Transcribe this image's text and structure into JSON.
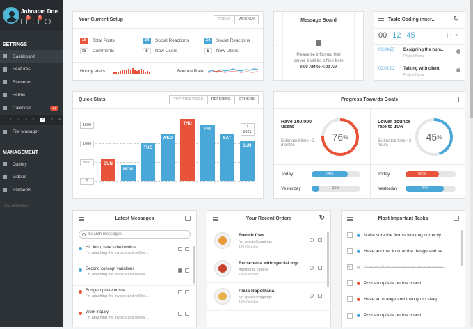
{
  "user": {
    "name": "Johnatan Doe",
    "badges": [
      "3",
      "5"
    ]
  },
  "sidebar": {
    "settings_title": "SETTINGS",
    "items": [
      {
        "label": "Dashboard"
      },
      {
        "label": "Features"
      },
      {
        "label": "Elements"
      },
      {
        "label": "Forms"
      },
      {
        "label": "Calendar",
        "badge": "22"
      }
    ],
    "calendar_days": [
      "7",
      "1",
      "2",
      "3",
      "1",
      "2",
      "3",
      "4"
    ],
    "file_manager": "File Manager",
    "management_title": "MANAGEMENT",
    "mgmt_items": [
      {
        "label": "Gallery"
      },
      {
        "label": "Videos"
      },
      {
        "label": "Elements"
      }
    ],
    "collapse": "COLLAPSE MENU"
  },
  "setup": {
    "title": "Your Current Setup",
    "tabs": [
      "TODAY",
      "WEEKLY"
    ],
    "stats": [
      {
        "num": "15",
        "label": "Total Posts",
        "color": "red"
      },
      {
        "num": "24",
        "label": "Social Reactions",
        "color": "blue"
      },
      {
        "num": "24",
        "label": "Social Reactions",
        "color": "blue"
      },
      {
        "num": "35",
        "label": "Comments",
        "color": "plain"
      },
      {
        "num": "5",
        "label": "New Users",
        "color": "plain"
      },
      {
        "num": "5",
        "label": "New Users",
        "color": "plain"
      }
    ],
    "hourly": "Hourly Visits",
    "bounce": "Bounce Rate"
  },
  "board": {
    "title": "Message Board",
    "text": "Please be informed that server 3 will be offline from",
    "time": "3:00 AM to 4:00 AM"
  },
  "task": {
    "title": "Task: Coding inner...",
    "clock": {
      "h": "00",
      "m": "12",
      "s": "45"
    },
    "entries": [
      {
        "time": "00:04:25",
        "title": "Designing the hom...",
        "sub": "Project Name"
      },
      {
        "time": "00:02:02",
        "title": "Talking with client",
        "sub": "Project Name"
      }
    ]
  },
  "quick": {
    "title": "Quick Stats",
    "tabs": [
      "TOP THIS WEEK",
      "REFERING",
      "OTHERS"
    ],
    "tooltip": {
      "label": "1021"
    }
  },
  "chart_data": {
    "type": "bar",
    "categories": [
      "SUN",
      "MON",
      "TUE",
      "WED",
      "THU",
      "FRI",
      "SAT",
      "SUN"
    ],
    "values": [
      580,
      420,
      990,
      1250,
      1640,
      1500,
      1250,
      1050
    ],
    "colors": [
      "#e8533a",
      "#4aa8d8",
      "#4aa8d8",
      "#4aa8d8",
      "#e8533a",
      "#4aa8d8",
      "#4aa8d8",
      "#4aa8d8"
    ],
    "yticks": [
      "1500",
      "1000",
      "500",
      "0"
    ],
    "ylim": [
      0,
      1700
    ]
  },
  "goals": {
    "title": "Progress Towards Goals",
    "items": [
      {
        "title": "Have 100,000 users",
        "est": "Estimated time ~3 months",
        "pct": "76",
        "color": "#e8533a"
      },
      {
        "title": "Lower bounce rate to 10%",
        "est": "Estimated time ~3 hours",
        "pct": "45",
        "color": "#4aa8d8"
      }
    ],
    "bars": [
      {
        "label": "Today",
        "pct": "74%",
        "frac": 0.74,
        "color": "#4aa8d8"
      },
      {
        "label": "Today",
        "pct": "66%",
        "frac": 0.66,
        "color": "#e8533a"
      },
      {
        "label": "Yesterday",
        "pct": "15%",
        "frac": 0.15,
        "color": "#4aa8d8"
      },
      {
        "label": "Yesterday",
        "pct": "76%",
        "frac": 0.76,
        "color": "#4aa8d8"
      }
    ]
  },
  "messages": {
    "title": "Latest Messages",
    "search_placeholder": "Search messages",
    "items": [
      {
        "title": "Hi, John, here's the invoice",
        "sub": "I'm attaching the invoice and will be...",
        "color": "#4aa8d8"
      },
      {
        "title": "Second concept variations",
        "sub": "I'm attaching the invoice and will be...",
        "color": "#4aa8d8"
      },
      {
        "title": "Budget update notice",
        "sub": "I'm attaching the invoice and will be...",
        "color": "#e8533a"
      },
      {
        "title": "Work inquiry",
        "sub": "I'm attaching the invoice and will be...",
        "color": "#e8533a"
      }
    ]
  },
  "orders": {
    "title": "Your Recent Orders",
    "items": [
      {
        "title": "French fries",
        "sub": "No special toppings",
        "date": "14th October",
        "color": "#e89a3a"
      },
      {
        "title": "Bruschetta with special ingr...",
        "sub": "Additional cheese",
        "date": "14th October",
        "color": "#c8402a"
      },
      {
        "title": "Pizza Napolitana",
        "sub": "No special toppings",
        "date": "14th October",
        "color": "#e8b04a"
      }
    ]
  },
  "tasks": {
    "title": "Most Important Tasks",
    "items": [
      {
        "label": "Make sure the form's working correctly",
        "color": "#4aa8d8",
        "done": false
      },
      {
        "label": "Have another look at the design and se...",
        "color": "#4aa8d8",
        "done": false
      },
      {
        "label": "Contact Josh and discuss the new con...",
        "color": "#cccccc",
        "done": true
      },
      {
        "label": "Post an update on the board",
        "color": "#e8533a",
        "done": false
      },
      {
        "label": "Have an orange and then go to sleep",
        "color": "#e8533a",
        "done": false
      },
      {
        "label": "Post an update on the board",
        "color": "#4aa8d8",
        "done": false
      }
    ]
  }
}
